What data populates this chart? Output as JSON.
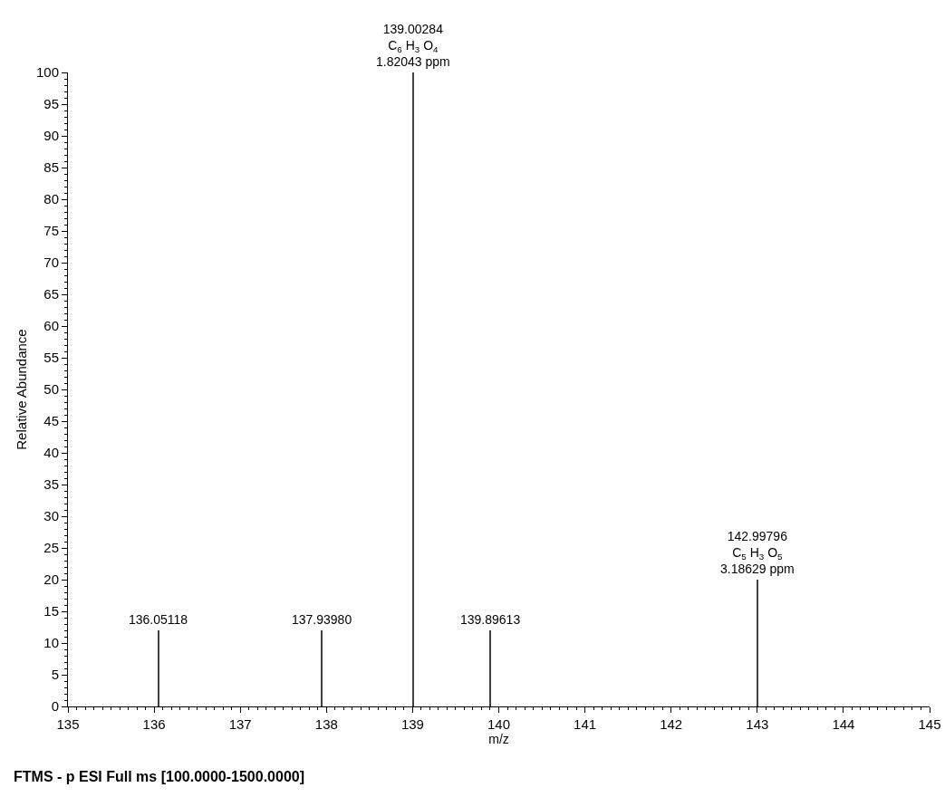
{
  "chart_data": {
    "type": "bar",
    "xlabel": "m/z",
    "ylabel": "Relative Abundance",
    "x": [
      136.05118,
      137.9398,
      139.00284,
      139.89613,
      142.99796
    ],
    "values": [
      12,
      12,
      100,
      12,
      20
    ],
    "color": "#404040",
    "xlim": [
      135,
      145
    ],
    "xticks": [
      135,
      136,
      137,
      138,
      139,
      140,
      141,
      142,
      143,
      144,
      145
    ],
    "ylim": [
      0,
      100
    ],
    "yticks": [
      0,
      5,
      10,
      15,
      20,
      25,
      30,
      35,
      40,
      45,
      50,
      55,
      60,
      65,
      70,
      75,
      80,
      85,
      90,
      95,
      100
    ],
    "grid": false,
    "annotations": [
      "FTMS - p ESI Full ms [100.0000-1500.0000]",
      {
        "text": "136.05118",
        "x": 136.05118,
        "y": 12
      },
      {
        "text": "137.93980",
        "x": 137.9398,
        "y": 12
      },
      {
        "text": "139.00284\nC$_{6}$ H$_{3}$ O$_{4}$\n1.82043 ppm",
        "x": 139.00284,
        "y": 100
      },
      {
        "text": "139.89613",
        "x": 139.89613,
        "y": 12
      },
      {
        "text": "142.99796\nC$_{5}$ H$_{3}$ O$_{5}$\n3.18629 ppm",
        "x": 142.99796,
        "y": 20
      }
    ]
  }
}
